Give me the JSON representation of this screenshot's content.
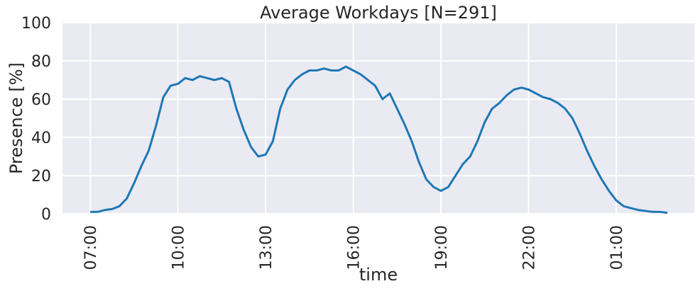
{
  "chart_data": {
    "type": "line",
    "title": "Average Workdays [N=291]",
    "xlabel": "time",
    "ylabel": "Presence [%]",
    "x": [
      7.0,
      7.25,
      7.5,
      7.75,
      8.0,
      8.25,
      8.5,
      8.75,
      9.0,
      9.25,
      9.5,
      9.75,
      10.0,
      10.25,
      10.5,
      10.75,
      11.0,
      11.25,
      11.5,
      11.75,
      12.0,
      12.25,
      12.5,
      12.75,
      13.0,
      13.25,
      13.5,
      13.75,
      14.0,
      14.25,
      14.5,
      14.75,
      15.0,
      15.25,
      15.5,
      15.75,
      16.0,
      16.25,
      16.5,
      16.75,
      17.0,
      17.25,
      17.5,
      17.75,
      18.0,
      18.25,
      18.5,
      18.75,
      19.0,
      19.25,
      19.5,
      19.75,
      20.0,
      20.25,
      20.5,
      20.75,
      21.0,
      21.25,
      21.5,
      21.75,
      22.0,
      22.25,
      22.5,
      22.75,
      23.0,
      23.25,
      23.5,
      23.75,
      24.0,
      24.25,
      24.5,
      24.75,
      25.0,
      25.25,
      25.5,
      25.75,
      26.0,
      26.25,
      26.5,
      26.75
    ],
    "series": [
      {
        "name": "Presence",
        "color": "#1f77b4",
        "values": [
          1,
          1,
          2,
          2.5,
          4,
          8,
          16,
          25,
          33,
          46,
          61,
          67,
          68,
          71,
          70,
          72,
          71,
          70,
          71,
          69,
          55,
          44,
          35,
          30,
          31,
          38,
          55,
          65,
          70,
          73,
          75,
          75,
          76,
          75,
          75,
          77,
          75,
          73,
          70,
          67,
          60,
          63,
          55,
          47,
          38,
          27,
          18,
          14,
          12,
          14,
          20,
          26,
          30,
          38,
          48,
          55,
          58,
          62,
          65,
          66,
          65,
          63,
          61,
          60,
          58,
          55,
          50,
          42,
          33,
          25,
          18,
          12,
          7,
          4,
          3,
          2,
          1.5,
          1,
          1,
          0.5
        ]
      }
    ],
    "xlim": [
      6.05,
      27.67
    ],
    "ylim": [
      0,
      100
    ],
    "xticks": [
      {
        "value": 7,
        "label": "07:00"
      },
      {
        "value": 10,
        "label": "10:00"
      },
      {
        "value": 13,
        "label": "13:00"
      },
      {
        "value": 16,
        "label": "16:00"
      },
      {
        "value": 19,
        "label": "19:00"
      },
      {
        "value": 22,
        "label": "22:00"
      },
      {
        "value": 25,
        "label": "01:00"
      }
    ],
    "yticks": [
      0,
      20,
      40,
      60,
      80,
      100
    ],
    "grid": true,
    "background": "#eaeaf2"
  }
}
